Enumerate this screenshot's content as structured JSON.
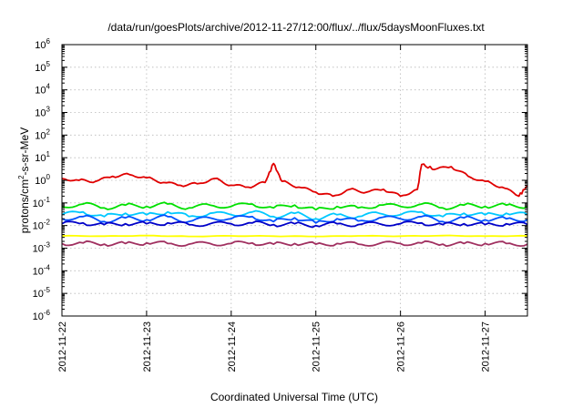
{
  "chart_data": {
    "type": "line",
    "title": "/data/run/goesPlots/archive/2012-11-27/12:00/flux/../flux/5daysMoonFluxes.txt",
    "xlabel": "Coordinated Universal Time (UTC)",
    "ylabel": {
      "base": "protons/cm",
      "sup": "2",
      "rest": "-s-sr-MeV"
    },
    "yscale": "log",
    "ylim_exp": [
      -6,
      6
    ],
    "y_ticks": [
      {
        "base": "10",
        "exp": "6"
      },
      {
        "base": "10",
        "exp": "5"
      },
      {
        "base": "10",
        "exp": "4"
      },
      {
        "base": "10",
        "exp": "3"
      },
      {
        "base": "10",
        "exp": "2"
      },
      {
        "base": "10",
        "exp": "1"
      },
      {
        "base": "10",
        "exp": "0"
      },
      {
        "base": "10",
        "exp": "-1"
      },
      {
        "base": "10",
        "exp": "-2"
      },
      {
        "base": "10",
        "exp": "-3"
      },
      {
        "base": "10",
        "exp": "-4"
      },
      {
        "base": "10",
        "exp": "-5"
      },
      {
        "base": "10",
        "exp": "-6"
      }
    ],
    "x_ticks": [
      "2012-11-22",
      "2012-11-23",
      "2012-11-24",
      "2012-11-25",
      "2012-11-26",
      "2012-11-27"
    ],
    "xlim": [
      "2012-11-22T00:00",
      "2012-11-27T12:00"
    ],
    "grid": true,
    "series": [
      {
        "color": "#ffff00",
        "x": [
          0,
          0.5,
          1,
          1.5,
          2,
          2.5,
          3,
          3.5,
          4,
          4.5,
          5,
          5.5
        ],
        "y": [
          0.0035,
          0.0034,
          0.0036,
          0.0033,
          0.0035,
          0.0034,
          0.0033,
          0.0035,
          0.0034,
          0.0036,
          0.0034,
          0.0035
        ]
      },
      {
        "color": "#00e000",
        "x": [
          0,
          0.25,
          0.5,
          0.75,
          1,
          1.25,
          1.5,
          1.75,
          2,
          2.25,
          2.5,
          2.75,
          3,
          3.25,
          3.5,
          3.75,
          4,
          4.25,
          4.5,
          4.75,
          5,
          5.25,
          5.5
        ],
        "y": [
          0.07,
          0.09,
          0.06,
          0.08,
          0.07,
          0.09,
          0.06,
          0.08,
          0.07,
          0.09,
          0.06,
          0.08,
          0.05,
          0.07,
          0.06,
          0.08,
          0.07,
          0.09,
          0.06,
          0.08,
          0.07,
          0.08,
          0.07
        ]
      },
      {
        "color": "#00c8ff",
        "x": [
          0,
          0.25,
          0.5,
          0.75,
          1,
          1.25,
          1.5,
          1.75,
          2,
          2.25,
          2.5,
          2.75,
          3,
          3.25,
          3.5,
          3.75,
          4,
          4.25,
          4.5,
          4.75,
          5,
          5.25,
          5.5
        ],
        "y": [
          0.03,
          0.04,
          0.025,
          0.035,
          0.03,
          0.04,
          0.025,
          0.035,
          0.03,
          0.04,
          0.025,
          0.035,
          0.02,
          0.03,
          0.025,
          0.035,
          0.03,
          0.04,
          0.025,
          0.035,
          0.03,
          0.035,
          0.03
        ]
      },
      {
        "color": "#0050ff",
        "x": [
          0,
          0.25,
          0.5,
          0.75,
          1,
          1.25,
          1.5,
          1.75,
          2,
          2.25,
          2.5,
          2.75,
          3,
          3.25,
          3.5,
          3.75,
          4,
          4.25,
          4.5,
          4.75,
          5,
          5.25,
          5.5
        ],
        "y": [
          0.02,
          0.025,
          0.015,
          0.022,
          0.018,
          0.025,
          0.015,
          0.022,
          0.02,
          0.025,
          0.015,
          0.022,
          0.013,
          0.02,
          0.016,
          0.022,
          0.02,
          0.025,
          0.015,
          0.022,
          0.018,
          0.02,
          0.018
        ]
      },
      {
        "color": "#0000c8",
        "x": [
          0,
          0.25,
          0.5,
          0.75,
          1,
          1.25,
          1.5,
          1.75,
          2,
          2.25,
          2.5,
          2.75,
          3,
          3.25,
          3.5,
          3.75,
          4,
          4.25,
          4.5,
          4.75,
          5,
          5.25,
          5.5
        ],
        "y": [
          0.012,
          0.013,
          0.011,
          0.012,
          0.012,
          0.013,
          0.011,
          0.012,
          0.012,
          0.013,
          0.011,
          0.012,
          0.01,
          0.012,
          0.011,
          0.012,
          0.012,
          0.013,
          0.011,
          0.012,
          0.011,
          0.012,
          0.011
        ]
      },
      {
        "color": "#a03060",
        "x": [
          0,
          0.25,
          0.5,
          0.75,
          1,
          1.25,
          1.5,
          1.75,
          2,
          2.25,
          2.5,
          2.75,
          3,
          3.25,
          3.5,
          3.75,
          4,
          4.25,
          4.5,
          4.75,
          5,
          5.25,
          5.5
        ],
        "y": [
          0.0016,
          0.0017,
          0.0015,
          0.0016,
          0.0017,
          0.0016,
          0.0015,
          0.0016,
          0.0016,
          0.0017,
          0.0015,
          0.0016,
          0.0015,
          0.0016,
          0.0015,
          0.0016,
          0.0016,
          0.0017,
          0.0015,
          0.0016,
          0.0016,
          0.0016,
          0.0015
        ]
      },
      {
        "color": "#e00000",
        "x": [
          0,
          0.2,
          0.4,
          0.6,
          0.8,
          1,
          1.2,
          1.4,
          1.6,
          1.8,
          2,
          2.2,
          2.4,
          2.5,
          2.6,
          2.8,
          3,
          3.2,
          3.4,
          3.6,
          3.8,
          4,
          4.2,
          4.25,
          4.4,
          4.6,
          4.8,
          5,
          5.2,
          5.4,
          5.5
        ],
        "y": [
          1.2,
          1.0,
          0.9,
          1.5,
          1.8,
          1.3,
          0.8,
          0.6,
          0.7,
          1.2,
          0.6,
          0.5,
          0.8,
          5.5,
          0.9,
          0.5,
          0.3,
          0.2,
          0.4,
          0.3,
          0.4,
          0.2,
          0.4,
          5.0,
          3.0,
          4.0,
          1.5,
          0.9,
          0.5,
          0.2,
          0.6
        ]
      }
    ]
  }
}
